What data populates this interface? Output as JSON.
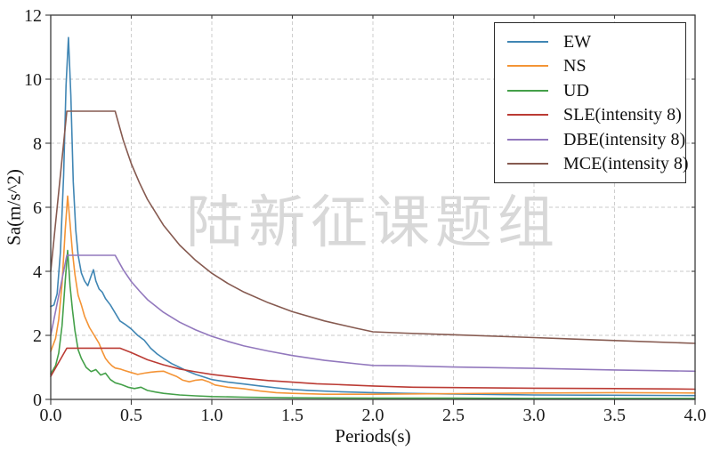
{
  "watermark": {
    "text": "陆新征课题组",
    "color": "#d8d8d8"
  },
  "colors": {
    "background": "#ffffff",
    "axis": "#3c3c3c",
    "grid": "#c9c9c9",
    "tick_label": "#1a1a1a",
    "legend_border": "#2b2b2b"
  },
  "chart_data": {
    "type": "line",
    "title": "",
    "xlabel": "Periods(s)",
    "ylabel": "Sa(m/s^2)",
    "xlim": [
      0,
      4
    ],
    "ylim": [
      0,
      12
    ],
    "grid": true,
    "grid_style": "dashed",
    "legend_position": "upper right",
    "xticks": {
      "values": [
        0,
        0.5,
        1.0,
        1.5,
        2.0,
        2.5,
        3.0,
        3.5,
        4.0
      ],
      "labels": [
        "0.0",
        "0.5",
        "1.0",
        "1.5",
        "2.0",
        "2.5",
        "3.0",
        "3.5",
        "4.0"
      ]
    },
    "yticks": {
      "values": [
        0,
        2,
        4,
        6,
        8,
        10,
        12
      ],
      "labels": [
        "0",
        "2",
        "4",
        "6",
        "8",
        "10",
        "12"
      ]
    },
    "series": [
      {
        "name": "EW",
        "color": "#4086b4",
        "points": [
          [
            0,
            2.9
          ],
          [
            0.02,
            2.95
          ],
          [
            0.04,
            3.3
          ],
          [
            0.06,
            4.6
          ],
          [
            0.08,
            7.0
          ],
          [
            0.095,
            9.8
          ],
          [
            0.11,
            11.3
          ],
          [
            0.125,
            9.5
          ],
          [
            0.14,
            6.8
          ],
          [
            0.155,
            5.3
          ],
          [
            0.17,
            4.5
          ],
          [
            0.19,
            3.95
          ],
          [
            0.21,
            3.7
          ],
          [
            0.23,
            3.55
          ],
          [
            0.25,
            3.85
          ],
          [
            0.265,
            4.05
          ],
          [
            0.28,
            3.7
          ],
          [
            0.3,
            3.45
          ],
          [
            0.32,
            3.35
          ],
          [
            0.34,
            3.15
          ],
          [
            0.37,
            2.95
          ],
          [
            0.4,
            2.7
          ],
          [
            0.43,
            2.45
          ],
          [
            0.46,
            2.35
          ],
          [
            0.5,
            2.2
          ],
          [
            0.54,
            2.0
          ],
          [
            0.58,
            1.85
          ],
          [
            0.62,
            1.6
          ],
          [
            0.66,
            1.42
          ],
          [
            0.7,
            1.28
          ],
          [
            0.75,
            1.12
          ],
          [
            0.8,
            1.0
          ],
          [
            0.85,
            0.88
          ],
          [
            0.9,
            0.78
          ],
          [
            0.95,
            0.7
          ],
          [
            1.0,
            0.62
          ],
          [
            1.1,
            0.54
          ],
          [
            1.2,
            0.48
          ],
          [
            1.3,
            0.42
          ],
          [
            1.4,
            0.36
          ],
          [
            1.5,
            0.31
          ],
          [
            1.6,
            0.28
          ],
          [
            1.8,
            0.24
          ],
          [
            2.0,
            0.21
          ],
          [
            2.2,
            0.19
          ],
          [
            2.5,
            0.17
          ],
          [
            2.8,
            0.15
          ],
          [
            3.0,
            0.14
          ],
          [
            3.5,
            0.13
          ],
          [
            4.0,
            0.12
          ]
        ]
      },
      {
        "name": "NS",
        "color": "#f49436",
        "points": [
          [
            0,
            1.5
          ],
          [
            0.03,
            1.9
          ],
          [
            0.05,
            2.5
          ],
          [
            0.07,
            3.6
          ],
          [
            0.09,
            5.3
          ],
          [
            0.105,
            6.35
          ],
          [
            0.12,
            5.5
          ],
          [
            0.135,
            4.6
          ],
          [
            0.15,
            3.9
          ],
          [
            0.17,
            3.25
          ],
          [
            0.19,
            2.95
          ],
          [
            0.21,
            2.6
          ],
          [
            0.24,
            2.25
          ],
          [
            0.27,
            2.0
          ],
          [
            0.3,
            1.75
          ],
          [
            0.32,
            1.5
          ],
          [
            0.34,
            1.28
          ],
          [
            0.36,
            1.15
          ],
          [
            0.38,
            1.05
          ],
          [
            0.4,
            0.98
          ],
          [
            0.43,
            0.95
          ],
          [
            0.46,
            0.9
          ],
          [
            0.5,
            0.84
          ],
          [
            0.54,
            0.78
          ],
          [
            0.58,
            0.82
          ],
          [
            0.62,
            0.85
          ],
          [
            0.66,
            0.87
          ],
          [
            0.7,
            0.88
          ],
          [
            0.74,
            0.8
          ],
          [
            0.78,
            0.72
          ],
          [
            0.82,
            0.6
          ],
          [
            0.86,
            0.55
          ],
          [
            0.9,
            0.6
          ],
          [
            0.94,
            0.62
          ],
          [
            0.98,
            0.55
          ],
          [
            1.02,
            0.45
          ],
          [
            1.1,
            0.38
          ],
          [
            1.2,
            0.33
          ],
          [
            1.3,
            0.26
          ],
          [
            1.4,
            0.21
          ],
          [
            1.5,
            0.19
          ],
          [
            1.7,
            0.16
          ],
          [
            2.0,
            0.16
          ],
          [
            2.5,
            0.18
          ],
          [
            3.0,
            0.2
          ],
          [
            3.5,
            0.21
          ],
          [
            4.0,
            0.2
          ]
        ]
      },
      {
        "name": "UD",
        "color": "#44a049",
        "points": [
          [
            0,
            0.8
          ],
          [
            0.03,
            1.05
          ],
          [
            0.05,
            1.45
          ],
          [
            0.07,
            2.3
          ],
          [
            0.09,
            3.7
          ],
          [
            0.105,
            4.65
          ],
          [
            0.12,
            3.55
          ],
          [
            0.135,
            2.8
          ],
          [
            0.15,
            2.15
          ],
          [
            0.17,
            1.55
          ],
          [
            0.19,
            1.28
          ],
          [
            0.22,
            1.0
          ],
          [
            0.25,
            0.87
          ],
          [
            0.28,
            0.93
          ],
          [
            0.31,
            0.76
          ],
          [
            0.34,
            0.82
          ],
          [
            0.37,
            0.62
          ],
          [
            0.4,
            0.52
          ],
          [
            0.44,
            0.46
          ],
          [
            0.48,
            0.38
          ],
          [
            0.52,
            0.34
          ],
          [
            0.56,
            0.38
          ],
          [
            0.6,
            0.28
          ],
          [
            0.65,
            0.23
          ],
          [
            0.7,
            0.19
          ],
          [
            0.8,
            0.14
          ],
          [
            0.9,
            0.11
          ],
          [
            1.0,
            0.09
          ],
          [
            1.2,
            0.07
          ],
          [
            1.5,
            0.05
          ],
          [
            2.0,
            0.04
          ],
          [
            2.5,
            0.04
          ],
          [
            3.0,
            0.03
          ],
          [
            3.5,
            0.03
          ],
          [
            4.0,
            0.03
          ]
        ]
      },
      {
        "name": "SLE(intensity 8)",
        "color": "#bb3b34",
        "points": [
          [
            0,
            0.72
          ],
          [
            0.1,
            1.6
          ],
          [
            0.43,
            1.6
          ],
          [
            0.5,
            1.46
          ],
          [
            0.55,
            1.35
          ],
          [
            0.6,
            1.24
          ],
          [
            0.7,
            1.08
          ],
          [
            0.8,
            0.95
          ],
          [
            0.9,
            0.86
          ],
          [
            1.0,
            0.78
          ],
          [
            1.1,
            0.72
          ],
          [
            1.2,
            0.66
          ],
          [
            1.35,
            0.59
          ],
          [
            1.5,
            0.54
          ],
          [
            1.65,
            0.49
          ],
          [
            1.8,
            0.46
          ],
          [
            2.0,
            0.42
          ],
          [
            2.25,
            0.38
          ],
          [
            2.5,
            0.37
          ],
          [
            3.0,
            0.35
          ],
          [
            3.5,
            0.34
          ],
          [
            4.0,
            0.32
          ]
        ]
      },
      {
        "name": "DBE(intensity 8)",
        "color": "#9278bd",
        "points": [
          [
            0,
            2.0
          ],
          [
            0.1,
            4.5
          ],
          [
            0.4,
            4.5
          ],
          [
            0.45,
            4.05
          ],
          [
            0.5,
            3.68
          ],
          [
            0.55,
            3.39
          ],
          [
            0.6,
            3.12
          ],
          [
            0.7,
            2.72
          ],
          [
            0.8,
            2.41
          ],
          [
            0.9,
            2.17
          ],
          [
            1.0,
            1.97
          ],
          [
            1.1,
            1.81
          ],
          [
            1.2,
            1.67
          ],
          [
            1.35,
            1.51
          ],
          [
            1.5,
            1.37
          ],
          [
            1.7,
            1.22
          ],
          [
            1.9,
            1.11
          ],
          [
            2.0,
            1.06
          ],
          [
            2.2,
            1.05
          ],
          [
            2.5,
            1.01
          ],
          [
            3.0,
            0.97
          ],
          [
            3.5,
            0.92
          ],
          [
            4.0,
            0.88
          ]
        ]
      },
      {
        "name": "MCE(intensity 8)",
        "color": "#865a50",
        "points": [
          [
            0,
            4.0
          ],
          [
            0.1,
            9.0
          ],
          [
            0.4,
            9.0
          ],
          [
            0.45,
            8.1
          ],
          [
            0.5,
            7.36
          ],
          [
            0.55,
            6.77
          ],
          [
            0.6,
            6.25
          ],
          [
            0.7,
            5.44
          ],
          [
            0.8,
            4.82
          ],
          [
            0.9,
            4.34
          ],
          [
            1.0,
            3.94
          ],
          [
            1.1,
            3.62
          ],
          [
            1.2,
            3.35
          ],
          [
            1.35,
            3.02
          ],
          [
            1.5,
            2.74
          ],
          [
            1.7,
            2.45
          ],
          [
            1.9,
            2.22
          ],
          [
            2.0,
            2.11
          ],
          [
            2.2,
            2.07
          ],
          [
            2.5,
            2.02
          ],
          [
            3.0,
            1.93
          ],
          [
            3.5,
            1.84
          ],
          [
            4.0,
            1.75
          ]
        ]
      }
    ]
  }
}
